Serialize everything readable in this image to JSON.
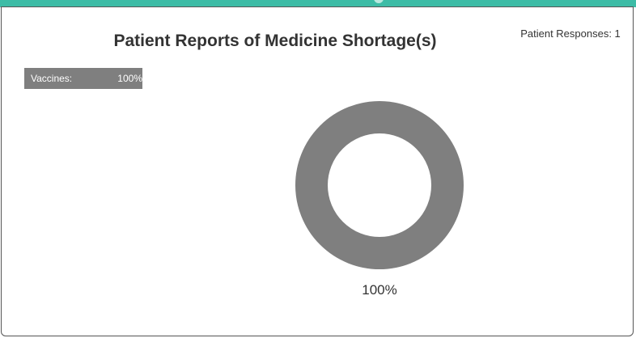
{
  "chart_data": {
    "type": "pie",
    "title": "Patient Reports of Medicine Shortage(s)",
    "categories": [
      "Vaccines"
    ],
    "values": [
      100
    ],
    "value_labels": [
      "100%"
    ],
    "legend": {
      "placement": "top-left",
      "items": [
        {
          "label": "Vaccines:",
          "value_label": "100%"
        }
      ]
    },
    "responses_label": "Patient Responses: 1",
    "donut": true
  },
  "colors": {
    "header_accent": "#3dbca6",
    "slice": "#7f7f7f",
    "text": "#333333",
    "legend_text": "#ffffff"
  }
}
